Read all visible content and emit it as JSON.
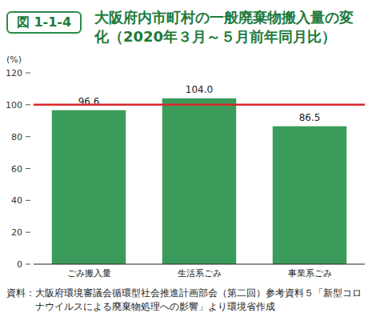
{
  "chart_data": {
    "type": "bar",
    "figure_label": "図 1-1-4",
    "title": "大阪府内市町村の一般廃棄物搬入量の変化（2020年３月～５月前年同月比）",
    "y_label": "(%)",
    "categories": [
      "ごみ搬入量",
      "生活系ごみ",
      "事業系ごみ"
    ],
    "values": [
      96.6,
      104.0,
      86.5
    ],
    "value_labels": [
      "96.6",
      "104.0",
      "86.5"
    ],
    "data_labels": true,
    "color": "#3a9b5a",
    "ylim": [
      0,
      120
    ],
    "yticks": [
      0,
      20,
      40,
      60,
      80,
      100,
      120
    ],
    "grid": false,
    "reference_line": {
      "value": 100,
      "color": "#d9262c"
    },
    "source": "資料：大阪府環境審議会循環型社会推進計画部会（第二回）参考資料５「新型コロナウイルスによる廃棄物処理への影響」より環境省作成"
  }
}
